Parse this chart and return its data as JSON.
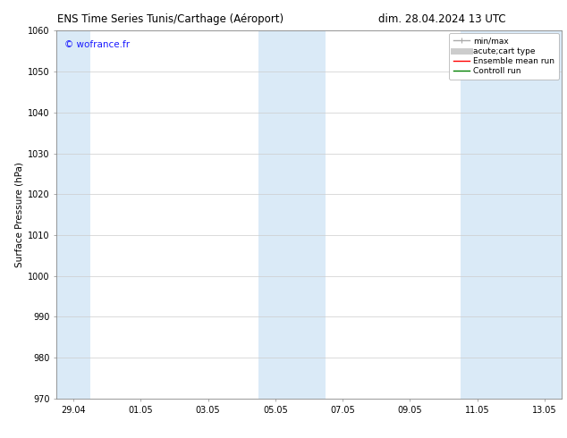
{
  "title_left": "ENS Time Series Tunis/Carthage (Aéroport)",
  "title_right": "dim. 28.04.2024 13 UTC",
  "ylabel": "Surface Pressure (hPa)",
  "watermark": "© wofrance.fr",
  "watermark_color": "#1a1aff",
  "ylim": [
    970,
    1060
  ],
  "yticks": [
    970,
    980,
    990,
    1000,
    1010,
    1020,
    1030,
    1040,
    1050,
    1060
  ],
  "xtick_labels": [
    "29.04",
    "01.05",
    "03.05",
    "05.05",
    "07.05",
    "09.05",
    "11.05",
    "13.05"
  ],
  "xtick_positions": [
    0,
    2,
    4,
    6,
    8,
    10,
    12,
    14
  ],
  "shaded_bands": [
    {
      "x_start": -0.5,
      "x_end": 0.5
    },
    {
      "x_start": 5.5,
      "x_end": 7.5
    },
    {
      "x_start": 11.5,
      "x_end": 14.5
    }
  ],
  "shade_color": "#daeaf7",
  "background_color": "#ffffff",
  "grid_color": "#cccccc",
  "title_fontsize": 8.5,
  "ylabel_fontsize": 7.5,
  "tick_fontsize": 7,
  "watermark_fontsize": 7.5,
  "legend_fontsize": 6.5,
  "legend_entries": [
    {
      "label": "min/max",
      "color": "#aaaaaa",
      "lw": 1.0
    },
    {
      "label": "acute;cart type",
      "color": "#cccccc",
      "lw": 5
    },
    {
      "label": "Ensemble mean run",
      "color": "#ff0000",
      "lw": 1.0
    },
    {
      "label": "Controll run",
      "color": "#008000",
      "lw": 1.0
    }
  ],
  "xmin": -0.5,
  "xmax": 14.5
}
